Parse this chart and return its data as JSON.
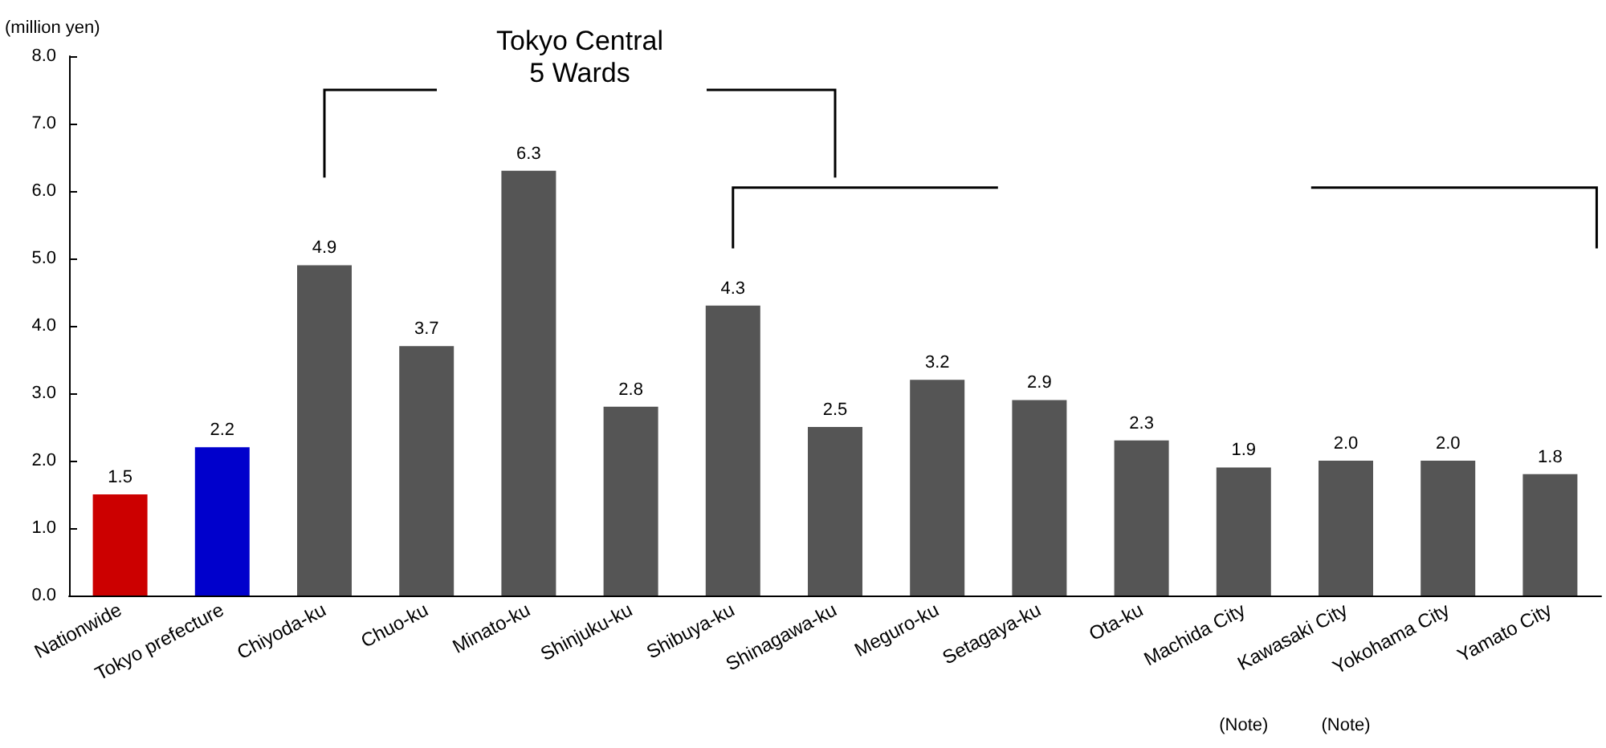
{
  "chart_data": {
    "type": "bar",
    "ylabel": "(million yen)",
    "categories": [
      "Nationwide",
      "Tokyo prefecture",
      "Chiyoda-ku",
      "Chuo-ku",
      "Minato-ku",
      "Shinjuku-ku",
      "Shibuya-ku",
      "Shinagawa-ku",
      "Meguro-ku",
      "Setagaya-ku",
      "Ota-ku",
      "Machida City",
      "Kawasaki City",
      "Yokohama City",
      "Yamato City"
    ],
    "values": [
      1.5,
      2.2,
      4.9,
      3.7,
      6.3,
      2.8,
      4.3,
      2.5,
      3.2,
      2.9,
      2.3,
      1.9,
      2.0,
      2.0,
      1.8
    ],
    "value_labels": [
      "1.5",
      "2.2",
      "4.9",
      "3.7",
      "6.3",
      "2.8",
      "4.3",
      "2.5",
      "3.2",
      "2.9",
      "2.3",
      "1.9",
      "2.0",
      "2.0",
      "1.8"
    ],
    "colors": [
      "#cc0000",
      "#0000cc",
      "#555555",
      "#555555",
      "#555555",
      "#555555",
      "#555555",
      "#555555",
      "#555555",
      "#555555",
      "#555555",
      "#555555",
      "#555555",
      "#555555",
      "#555555"
    ],
    "ylim": [
      0,
      8
    ],
    "yticks": [
      {
        "value": 0,
        "label": "0.0"
      },
      {
        "value": 1,
        "label": "1.0"
      },
      {
        "value": 2,
        "label": "2.0"
      },
      {
        "value": 3,
        "label": "3.0"
      },
      {
        "value": 4,
        "label": "4.0"
      },
      {
        "value": 5,
        "label": "5.0"
      },
      {
        "value": 6,
        "label": "6.0"
      },
      {
        "value": 7,
        "label": "7.0"
      },
      {
        "value": 8,
        "label": "8.0"
      }
    ],
    "grid": false,
    "annotations": [
      "Tokyo Central 5 Wards",
      "(Note)",
      "(Note)"
    ]
  }
}
